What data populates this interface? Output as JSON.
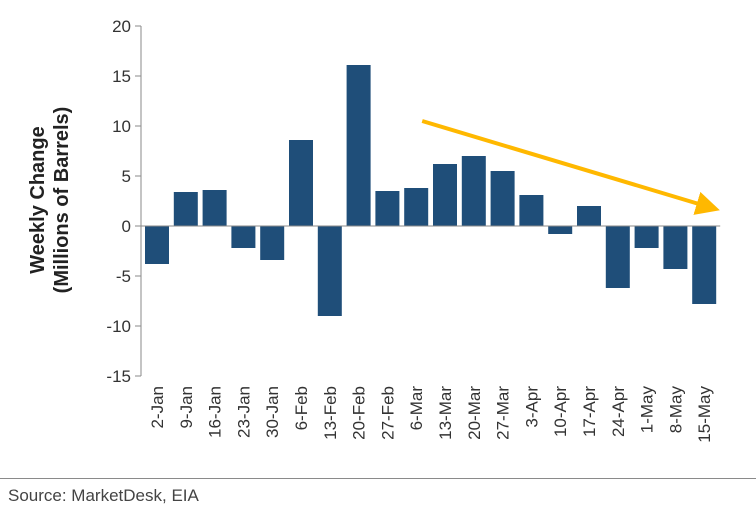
{
  "chart_data": {
    "type": "bar",
    "title": "",
    "xlabel": "",
    "ylabel_line1": "Weekly Change",
    "ylabel_line2": "(Millions of Barrels)",
    "ylim": [
      -15,
      20
    ],
    "yticks": [
      20,
      15,
      10,
      5,
      0,
      -5,
      -10,
      -15
    ],
    "grid": false,
    "categories": [
      "2-Jan",
      "9-Jan",
      "16-Jan",
      "23-Jan",
      "30-Jan",
      "6-Feb",
      "13-Feb",
      "20-Feb",
      "27-Feb",
      "6-Mar",
      "13-Mar",
      "20-Mar",
      "27-Mar",
      "3-Apr",
      "10-Apr",
      "17-Apr",
      "24-Apr",
      "1-May",
      "8-May",
      "15-May"
    ],
    "values": [
      -3.8,
      3.4,
      3.6,
      -2.2,
      -3.4,
      8.6,
      -9.0,
      16.1,
      3.5,
      3.8,
      6.2,
      7.0,
      5.5,
      3.1,
      -0.8,
      2.0,
      -6.2,
      -2.2,
      -4.3,
      -7.8
    ],
    "bar_color": "#1f4e79",
    "trend_arrow": {
      "color": "#ffb800",
      "from": {
        "category": "6-Mar",
        "value": 10.5
      },
      "to": {
        "category": "15-May",
        "value": 1.8
      }
    }
  },
  "source": "Source: MarketDesk, EIA"
}
